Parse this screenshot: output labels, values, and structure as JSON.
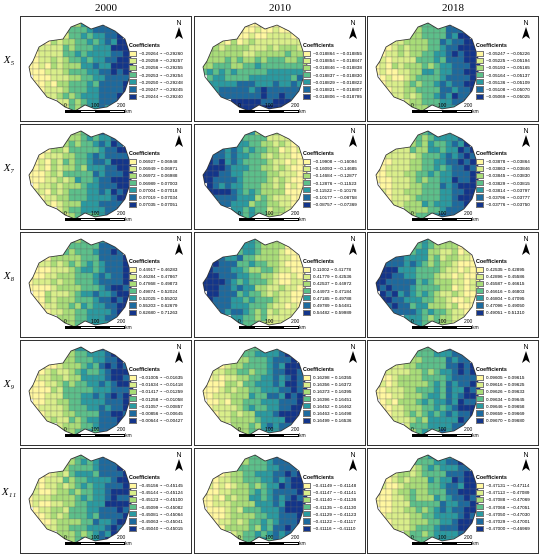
{
  "figure": {
    "years": [
      "2000",
      "2010",
      "2018"
    ],
    "legend_title": "Coefficients",
    "north_label": "N",
    "scale": {
      "t0": "0",
      "t1": "100",
      "t2": "200",
      "unit": "km"
    },
    "colors": [
      "#fff7a0",
      "#d9ee8a",
      "#a8dc78",
      "#5cbf8a",
      "#2a9aa0",
      "#1d6a9e",
      "#13358a"
    ]
  },
  "rows": [
    {
      "label": "X₅",
      "pattern": "ew",
      "panels": [
        {
          "pattern": "ew",
          "legend": [
            "−0.29264 ~ −0.29260",
            "−0.29259 ~ −0.29257",
            "−0.29256 ~ −0.29255",
            "−0.29253 ~ −0.29254",
            "−0.29250 ~ −0.29248",
            "−0.29247 ~ −0.29245",
            "−0.29244 ~ −0.29240"
          ]
        },
        {
          "pattern": "ns",
          "legend": [
            "−0.018864 ~ −0.018855",
            "−0.018854 ~ −0.018847",
            "−0.018846 ~ −0.018838",
            "−0.018837 ~ −0.018830",
            "−0.018829 ~ −0.018822",
            "−0.018821 ~ −0.018807",
            "−0.018806 ~ −0.018795"
          ]
        },
        {
          "pattern": "ew",
          "legend": [
            "−0.05247 ~ −0.05226",
            "−0.05225 ~ −0.05194",
            "−0.05193 ~ −0.05165",
            "−0.05164 ~ −0.05137",
            "−0.05136 ~ −0.05109",
            "−0.05108 ~ −0.05070",
            "−0.05069 ~ −0.05025"
          ]
        }
      ]
    },
    {
      "label": "X₇",
      "panels": [
        {
          "pattern": "ew",
          "legend": [
            "0.06927 ~ 0.06948",
            "0.06949 ~ 0.06971",
            "0.06972 ~ 0.06988",
            "0.06989 ~ 0.07003",
            "0.07004 ~ 0.07018",
            "0.07019 ~ 0.07034",
            "0.07035 ~ 0.07051"
          ]
        },
        {
          "pattern": "we",
          "legend": [
            "−0.19908 ~ −0.16094",
            "−0.16093 ~ −0.14685",
            "−0.14684 ~ −0.12877",
            "−0.12876 ~ −0.11523",
            "−0.11522 ~ −0.10178",
            "−0.10177 ~ −0.08758",
            "−0.08757 ~ −0.07369"
          ]
        },
        {
          "pattern": "ew",
          "legend": [
            "−0.03878 ~ −0.03864",
            "−0.03863 ~ −0.03846",
            "−0.03845 ~ −0.03830",
            "−0.03829 ~ −0.03815",
            "−0.03814 ~ −0.03797",
            "−0.03796 ~ −0.03777",
            "−0.03776 ~ −0.03750"
          ]
        }
      ]
    },
    {
      "label": "X₈",
      "panels": [
        {
          "pattern": "ew",
          "legend": [
            "0.44917 ~ 0.46283",
            "0.46284 ~ 0.47867",
            "0.47868 ~ 0.49873",
            "0.49874 ~ 0.52024",
            "0.52025 ~ 0.55202",
            "0.55203 ~ 0.62679",
            "0.62680 ~ 0.71263"
          ]
        },
        {
          "pattern": "we",
          "legend": [
            "0.11002 ~ 0.41778",
            "0.41779 ~ 0.42536",
            "0.42537 ~ 0.44972",
            "0.44973 ~ 0.47184",
            "0.47185 ~ 0.49788",
            "0.49789 ~ 0.54481",
            "0.54482 ~ 0.59989"
          ]
        },
        {
          "pattern": "we",
          "legend": [
            "0.42535 ~ 0.42895",
            "0.42896 ~ 0.45586",
            "0.45587 ~ 0.46615",
            "0.46616 ~ 0.46803",
            "0.46804 ~ 0.47095",
            "0.47096 ~ 0.49050",
            "0.49051 ~ 0.51310"
          ]
        }
      ]
    },
    {
      "label": "X₉",
      "panels": [
        {
          "pattern": "ew",
          "legend": [
            "−0.01005 ~ −0.01635",
            "−0.01634 ~ −0.01418",
            "−0.01417 ~ −0.01259",
            "−0.01258 ~ −0.01058",
            "−0.01057 ~ −0.00857",
            "−0.00856 ~ −0.00645",
            "−0.00644 ~ −0.00427"
          ]
        },
        {
          "pattern": "ew",
          "legend": [
            "0.16298 ~ 0.16355",
            "0.16356 ~ 0.16372",
            "0.16373 ~ 0.16395",
            "0.16396 ~ 0.16451",
            "0.16452 ~ 0.16462",
            "0.16463 ~ 0.16498",
            "0.16499 ~ 0.16536"
          ]
        },
        {
          "pattern": "ew",
          "legend": [
            "0.09605 ~ 0.09615",
            "0.09616 ~ 0.09625",
            "0.09626 ~ 0.09633",
            "0.09634 ~ 0.09645",
            "0.09646 ~ 0.09658",
            "0.09659 ~ 0.09669",
            "0.09670 ~ 0.09680"
          ]
        }
      ]
    },
    {
      "label": "X₁₁",
      "panels": [
        {
          "pattern": "ew",
          "legend": [
            "−0.45156 ~ −0.45145",
            "−0.45144 ~ −0.45124",
            "−0.45123 ~ −0.45100",
            "−0.45099 ~ −0.45082",
            "−0.45081 ~ −0.45064",
            "−0.45063 ~ −0.45041",
            "−0.45040 ~ −0.45015"
          ]
        },
        {
          "pattern": "ew",
          "legend": [
            "−0.41149 ~ −0.41148",
            "−0.41147 ~ −0.41141",
            "−0.41140 ~ −0.41136",
            "−0.41135 ~ −0.41130",
            "−0.41129 ~ −0.41123",
            "−0.41122 ~ −0.41117",
            "−0.41116 ~ −0.41110"
          ]
        },
        {
          "pattern": "ew",
          "legend": [
            "−0.47131 ~ −0.47114",
            "−0.47113 ~ −0.47089",
            "−0.47088 ~ −0.47069",
            "−0.47068 ~ −0.47051",
            "−0.47050 ~ −0.47030",
            "−0.47029 ~ −0.47001",
            "−0.47000 ~ −0.46969"
          ]
        }
      ]
    }
  ]
}
